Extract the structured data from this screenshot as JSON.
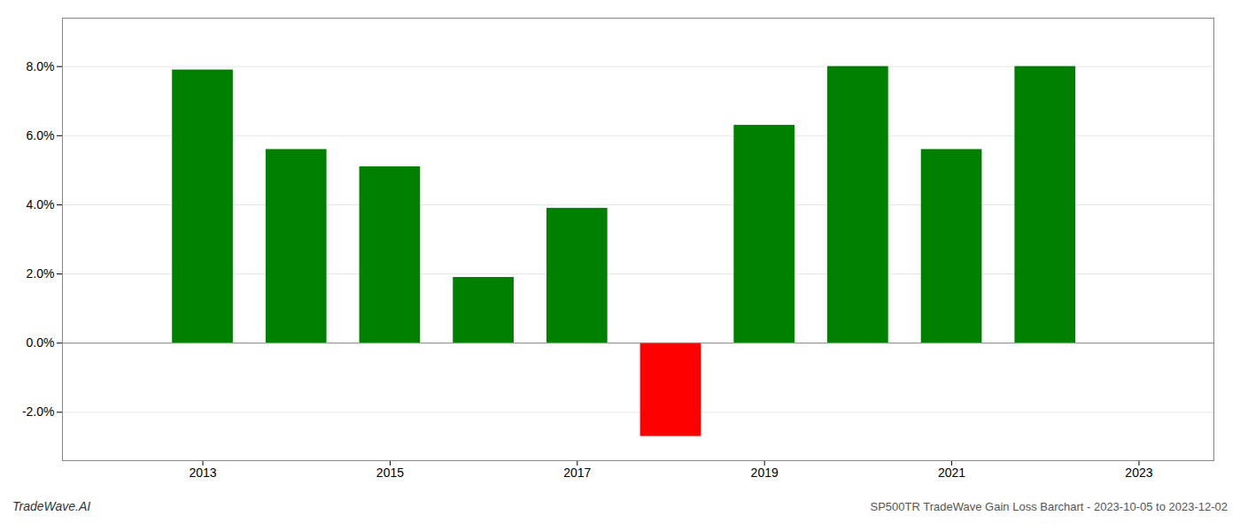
{
  "chart_data": {
    "type": "bar",
    "title": "SP500TR TradeWave Gain Loss Barchart - 2023-10-05 to 2023-12-02",
    "annotations": [
      "TradeWave.AI"
    ],
    "x": [
      2013,
      2014,
      2015,
      2016,
      2017,
      2018,
      2019,
      2020,
      2021,
      2022
    ],
    "values": [
      0.079,
      0.056,
      0.051,
      0.019,
      0.039,
      -0.027,
      0.063,
      0.08,
      0.056,
      0.08
    ],
    "colors": [
      "#008000",
      "#008000",
      "#008000",
      "#008000",
      "#008000",
      "#ff0000",
      "#008000",
      "#008000",
      "#008000",
      "#008000"
    ],
    "xlim": [
      2011.5,
      2023.8
    ],
    "xticks": [
      2013,
      2015,
      2017,
      2019,
      2021,
      2023
    ],
    "ylim": [
      -0.034,
      0.094
    ],
    "yticks": [
      {
        "value": -0.02,
        "label": "-2.0%"
      },
      {
        "value": 0,
        "label": "0.0%"
      },
      {
        "value": 0.02,
        "label": "2.0%"
      },
      {
        "value": 0.04,
        "label": "4.0%"
      },
      {
        "value": 0.06,
        "label": "6.0%"
      },
      {
        "value": 0.08,
        "label": "8.0%"
      }
    ],
    "grid": true
  }
}
